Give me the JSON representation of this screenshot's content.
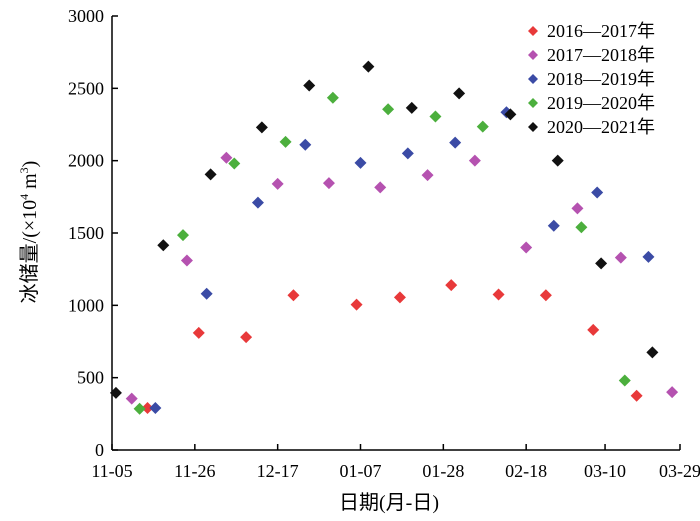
{
  "chart_data": {
    "type": "scatter",
    "title": "",
    "xlabel": "日期(月-日)",
    "ylabel": "冰储量/(×10⁴ m³)",
    "ylabel_parts": {
      "prefix": "冰储量/(×10",
      "exp": "4",
      "unit": " m",
      "unit_exp": "3",
      "suffix": ")"
    },
    "x_ticks": [
      "11-05",
      "11-26",
      "12-17",
      "01-07",
      "01-28",
      "02-18",
      "03-10",
      "03-29"
    ],
    "x_range": [
      "11-05",
      "03-29"
    ],
    "ylim": [
      0,
      3000
    ],
    "y_ticks": [
      "0",
      "500",
      "1000",
      "1500",
      "2000",
      "2500",
      "3000"
    ],
    "legend_position": "top-right",
    "grid": false,
    "series": [
      {
        "name": "2016—2017年",
        "color": "#e8393a",
        "points": [
          {
            "x": "11-14",
            "y": 290
          },
          {
            "x": "11-27",
            "y": 810
          },
          {
            "x": "12-09",
            "y": 780
          },
          {
            "x": "12-21",
            "y": 1070
          },
          {
            "x": "01-06",
            "y": 1005
          },
          {
            "x": "01-17",
            "y": 1055
          },
          {
            "x": "01-30",
            "y": 1140
          },
          {
            "x": "02-11",
            "y": 1075
          },
          {
            "x": "02-23",
            "y": 1070
          },
          {
            "x": "03-07",
            "y": 830
          },
          {
            "x": "03-18",
            "y": 375
          }
        ]
      },
      {
        "name": "2017—2018年",
        "color": "#b552b0",
        "points": [
          {
            "x": "11-10",
            "y": 355
          },
          {
            "x": "11-24",
            "y": 1310
          },
          {
            "x": "12-04",
            "y": 2020
          },
          {
            "x": "12-17",
            "y": 1840
          },
          {
            "x": "12-30",
            "y": 1845
          },
          {
            "x": "01-12",
            "y": 1815
          },
          {
            "x": "01-24",
            "y": 1900
          },
          {
            "x": "02-05",
            "y": 2000
          },
          {
            "x": "02-18",
            "y": 1400
          },
          {
            "x": "03-03",
            "y": 1670
          },
          {
            "x": "03-14",
            "y": 1330
          },
          {
            "x": "03-27",
            "y": 400
          }
        ]
      },
      {
        "name": "2018—2019年",
        "color": "#3b4ba5",
        "points": [
          {
            "x": "11-16",
            "y": 290
          },
          {
            "x": "11-29",
            "y": 1080
          },
          {
            "x": "12-12",
            "y": 1710
          },
          {
            "x": "12-24",
            "y": 2110
          },
          {
            "x": "01-07",
            "y": 1985
          },
          {
            "x": "01-19",
            "y": 2050
          },
          {
            "x": "01-31",
            "y": 2125
          },
          {
            "x": "02-13",
            "y": 2335
          },
          {
            "x": "02-25",
            "y": 1550
          },
          {
            "x": "03-08",
            "y": 1780
          },
          {
            "x": "03-21",
            "y": 1335
          }
        ]
      },
      {
        "name": "2019—2020年",
        "color": "#4caf3d",
        "points": [
          {
            "x": "11-12",
            "y": 285
          },
          {
            "x": "11-23",
            "y": 1485
          },
          {
            "x": "12-06",
            "y": 1980
          },
          {
            "x": "12-19",
            "y": 2130
          },
          {
            "x": "12-31",
            "y": 2435
          },
          {
            "x": "01-14",
            "y": 2355
          },
          {
            "x": "01-26",
            "y": 2305
          },
          {
            "x": "02-07",
            "y": 2235
          },
          {
            "x": "03-04",
            "y": 1540
          },
          {
            "x": "03-15",
            "y": 480
          }
        ]
      },
      {
        "name": "2020—2021年",
        "color": "#111111",
        "points": [
          {
            "x": "11-06",
            "y": 395
          },
          {
            "x": "11-18",
            "y": 1415
          },
          {
            "x": "11-30",
            "y": 1905
          },
          {
            "x": "12-13",
            "y": 2230
          },
          {
            "x": "12-25",
            "y": 2520
          },
          {
            "x": "01-09",
            "y": 2650
          },
          {
            "x": "01-20",
            "y": 2365
          },
          {
            "x": "02-01",
            "y": 2465
          },
          {
            "x": "02-14",
            "y": 2320
          },
          {
            "x": "02-26",
            "y": 2000
          },
          {
            "x": "03-09",
            "y": 1290
          },
          {
            "x": "03-22",
            "y": 675
          }
        ]
      }
    ]
  }
}
